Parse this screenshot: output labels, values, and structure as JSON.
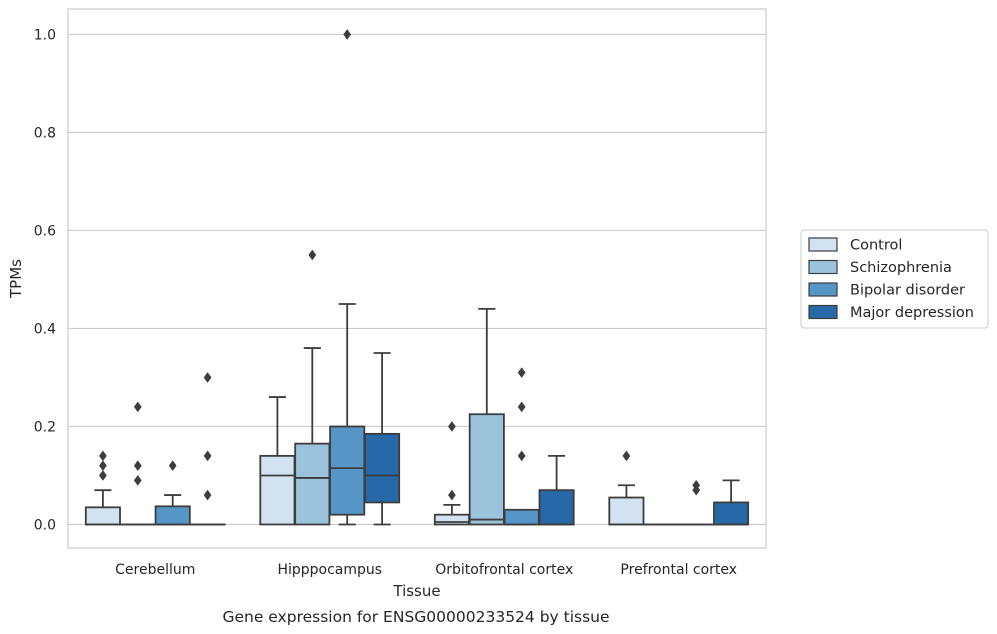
{
  "chart_data": {
    "type": "box",
    "xlabel": "Tissue",
    "ylabel": "TPMs",
    "caption": "Gene expression for ENSG00000233524 by tissue",
    "ylim": [
      -0.048,
      1.052
    ],
    "yticks": [
      "0.0",
      "0.2",
      "0.4",
      "0.6",
      "0.8",
      "1.0"
    ],
    "ytick_values": [
      0,
      0.2,
      0.4,
      0.6,
      0.8,
      1.0
    ],
    "grid": "horizontal",
    "legend_position": "right",
    "categories": [
      "Cerebellum",
      "Hipppocampus",
      "Orbitofrontal cortex",
      "Prefrontal cortex"
    ],
    "series": [
      {
        "name": "Control",
        "color": "#d3e2f1",
        "boxes": [
          {
            "min": 0,
            "q1": 0,
            "median": 0,
            "q3": 0.035,
            "max": 0.07,
            "outliers": [
              0.1,
              0.12,
              0.14
            ]
          },
          {
            "min": 0,
            "q1": 0,
            "median": 0.1,
            "q3": 0.14,
            "max": 0.26,
            "outliers": []
          },
          {
            "min": 0,
            "q1": 0,
            "median": 0.005,
            "q3": 0.02,
            "max": 0.04,
            "outliers": [
              0.06,
              0.2
            ]
          },
          {
            "min": 0,
            "q1": 0,
            "median": 0,
            "q3": 0.055,
            "max": 0.08,
            "outliers": [
              0.14
            ]
          }
        ]
      },
      {
        "name": "Schizophrenia",
        "color": "#9cc3dc",
        "boxes": [
          {
            "min": 0,
            "q1": 0,
            "median": 0,
            "q3": 0,
            "max": 0,
            "outliers": [
              0.09,
              0.12,
              0.24
            ]
          },
          {
            "min": 0,
            "q1": 0,
            "median": 0.095,
            "q3": 0.165,
            "max": 0.36,
            "outliers": [
              0.55
            ]
          },
          {
            "min": 0,
            "q1": 0,
            "median": 0.01,
            "q3": 0.225,
            "max": 0.44,
            "outliers": []
          },
          {
            "min": 0,
            "q1": 0,
            "median": 0,
            "q3": 0,
            "max": 0,
            "outliers": []
          }
        ]
      },
      {
        "name": "Bipolar disorder",
        "color": "#5696c6",
        "boxes": [
          {
            "min": 0,
            "q1": 0,
            "median": 0,
            "q3": 0.037,
            "max": 0.06,
            "outliers": [
              0.12
            ]
          },
          {
            "min": 0,
            "q1": 0.02,
            "median": 0.115,
            "q3": 0.2,
            "max": 0.45,
            "outliers": [
              1.0
            ]
          },
          {
            "min": 0,
            "q1": 0,
            "median": 0,
            "q3": 0.03,
            "max": 0.03,
            "outliers": [
              0.14,
              0.24,
              0.31
            ]
          },
          {
            "min": 0,
            "q1": 0,
            "median": 0,
            "q3": 0,
            "max": 0,
            "outliers": [
              0.07,
              0.08
            ]
          }
        ]
      },
      {
        "name": "Major depression",
        "color": "#2768a8",
        "boxes": [
          {
            "min": 0,
            "q1": 0,
            "median": 0,
            "q3": 0,
            "max": 0,
            "outliers": [
              0.06,
              0.14,
              0.3
            ]
          },
          {
            "min": 0,
            "q1": 0.045,
            "median": 0.1,
            "q3": 0.185,
            "max": 0.35,
            "outliers": []
          },
          {
            "min": 0,
            "q1": 0,
            "median": 0,
            "q3": 0.07,
            "max": 0.14,
            "outliers": []
          },
          {
            "min": 0,
            "q1": 0,
            "median": 0,
            "q3": 0.045,
            "max": 0.09,
            "outliers": []
          }
        ]
      }
    ]
  }
}
